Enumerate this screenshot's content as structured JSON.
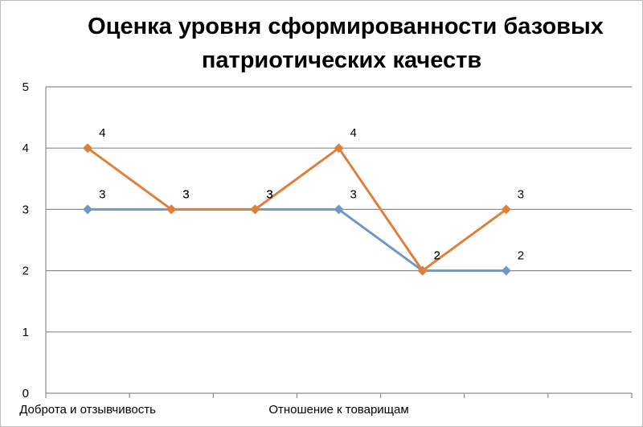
{
  "chart_data": {
    "type": "line",
    "title": "Оценка уровня сформированности базовых патриотических качеств",
    "title_lines": [
      "Оценка уровня сформированности базовых",
      "патриотических качеств"
    ],
    "xlabel": "",
    "ylabel": "",
    "ylim": [
      0,
      5
    ],
    "yticks": [
      0,
      1,
      2,
      3,
      4,
      5
    ],
    "grid": true,
    "legend": "none",
    "categories": [
      "Доброта и отзывчивость",
      "",
      "",
      "Отношение к товарищам",
      "",
      ""
    ],
    "series": [
      {
        "values": [
          3,
          3,
          3,
          3,
          2,
          2
        ],
        "color": "#6f97c9",
        "marker": "diamond"
      },
      {
        "values": [
          4,
          3,
          3,
          4,
          2,
          3
        ],
        "color": "#e07f3c",
        "marker": "diamond"
      }
    ],
    "data_labels": [
      [
        3,
        3,
        3,
        3,
        2,
        2
      ],
      [
        4,
        3,
        3,
        4,
        2,
        3
      ]
    ]
  }
}
